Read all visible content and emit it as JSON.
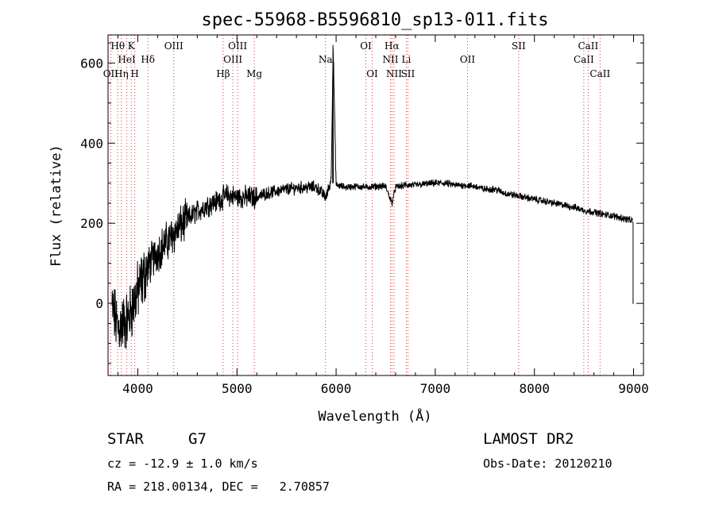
{
  "chart_data": {
    "type": "line",
    "title": "spec-55968-B5596810_sp13-011.fits",
    "xlabel": "Wavelength (Å)",
    "ylabel": "Flux (relative)",
    "xlim": [
      3700,
      9100
    ],
    "ylim": [
      -180,
      670
    ],
    "xticks": [
      4000,
      5000,
      6000,
      7000,
      8000,
      9000
    ],
    "yticks": [
      0,
      200,
      400,
      600
    ],
    "grid": false,
    "lines": [
      {
        "label": "Hθ",
        "x": 3798,
        "row": 1
      },
      {
        "label": "K",
        "x": 3934,
        "row": 1
      },
      {
        "label": "HeI",
        "x": 3889,
        "row": 2
      },
      {
        "label": "Hδ",
        "x": 4102,
        "row": 2
      },
      {
        "label": "OII",
        "x": 3727,
        "row": 3
      },
      {
        "label": "Hη",
        "x": 3835,
        "row": 3
      },
      {
        "label": "H",
        "x": 3969,
        "row": 3
      },
      {
        "label": "OIII",
        "x": 4363,
        "row": 1
      },
      {
        "label": "OIII",
        "x": 5007,
        "row": 1
      },
      {
        "label": "OIII",
        "x": 4959,
        "row": 2
      },
      {
        "label": "Hβ",
        "x": 4861,
        "row": 3
      },
      {
        "label": "Mg",
        "x": 5175,
        "row": 3
      },
      {
        "label": "Na",
        "x": 5893,
        "row": 2
      },
      {
        "label": "OI",
        "x": 6300,
        "row": 1
      },
      {
        "label": "OI",
        "x": 6364,
        "row": 3
      },
      {
        "label": "Hα",
        "x": 6563,
        "row": 1
      },
      {
        "label": "NII",
        "x": 6548,
        "row": 2
      },
      {
        "label": "NII",
        "x": 6584,
        "row": 3
      },
      {
        "label": "Li",
        "x": 6708,
        "row": 2
      },
      {
        "label": "SII",
        "x": 6724,
        "row": 3
      },
      {
        "label": "OII",
        "x": 7325,
        "row": 2
      },
      {
        "label": "SII",
        "x": 7841,
        "row": 1
      },
      {
        "label": "CaII",
        "x": 8498,
        "row": 2
      },
      {
        "label": "CaII",
        "x": 8542,
        "row": 1
      },
      {
        "label": "CaII",
        "x": 8662,
        "row": 3
      }
    ],
    "series": [
      {
        "x": [
          3700,
          3800,
          3900,
          4000,
          4100,
          4200,
          4300,
          4400,
          4500,
          4600,
          4700,
          4800,
          4900,
          5000,
          5100,
          5200,
          5300,
          5400,
          5500,
          5600,
          5700,
          5800,
          5900,
          5950,
          5970,
          6000,
          6100,
          6200,
          6300,
          6400,
          6500,
          6563,
          6600,
          6700,
          6800,
          6900,
          7000,
          7100,
          7200,
          7300,
          7400,
          7500,
          7600,
          7700,
          7800,
          7900,
          8000,
          8100,
          8200,
          8300,
          8400,
          8500,
          8600,
          8700,
          8800,
          8900,
          9000
        ],
        "y": [
          20,
          -60,
          -40,
          30,
          90,
          130,
          155,
          185,
          210,
          230,
          245,
          255,
          270,
          265,
          265,
          265,
          275,
          280,
          285,
          288,
          290,
          290,
          265,
          310,
          640,
          295,
          290,
          292,
          290,
          292,
          292,
          250,
          290,
          295,
          295,
          298,
          300,
          300,
          295,
          295,
          292,
          285,
          285,
          275,
          270,
          265,
          260,
          255,
          250,
          245,
          240,
          232,
          228,
          222,
          218,
          212,
          205
        ]
      }
    ]
  },
  "footer": {
    "object_type": "STAR",
    "subclass": "G7",
    "survey": "LAMOST DR2",
    "cz_text": "cz = -12.9 ± 1.0 km/s",
    "obs_date_text": "Obs-Date: 20120210",
    "coords_text": "RA = 218.00134, DEC =   2.70857"
  }
}
